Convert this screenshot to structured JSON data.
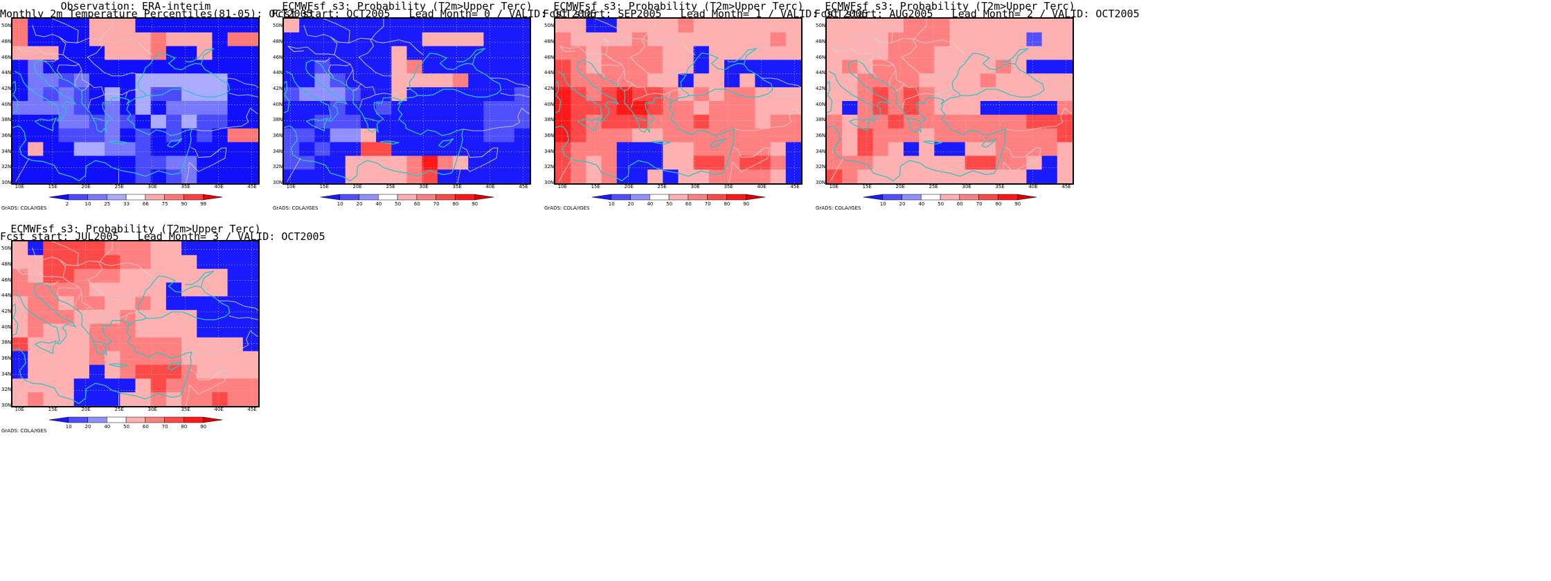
{
  "page": {
    "footer": "GrADS: COLA/IGES"
  },
  "map_extent": {
    "lon": [
      9,
      46
    ],
    "lat": [
      30,
      51
    ]
  },
  "palette": {
    "obs": [
      {
        "color": "#1010ff",
        "lo": 0,
        "hi": 2
      },
      {
        "color": "#4a4aff",
        "lo": 2,
        "hi": 10
      },
      {
        "color": "#7878ff",
        "lo": 10,
        "hi": 25
      },
      {
        "color": "#aaaaff",
        "lo": 25,
        "hi": 33
      },
      {
        "color": "#ffffff",
        "lo": 33,
        "hi": 66
      },
      {
        "color": "#ffaaaa",
        "lo": 66,
        "hi": 75
      },
      {
        "color": "#ff7878",
        "lo": 75,
        "hi": 90
      },
      {
        "color": "#ff4040",
        "lo": 90,
        "hi": 98
      },
      {
        "color": "#ee0000",
        "lo": 98,
        "hi": 100
      }
    ],
    "prob": [
      {
        "color": "#1a1aff",
        "lo": 0,
        "hi": 10
      },
      {
        "color": "#5050ff",
        "lo": 10,
        "hi": 20
      },
      {
        "color": "#9090ff",
        "lo": 20,
        "hi": 40
      },
      {
        "color": "#ffffff",
        "lo": 40,
        "hi": 50
      },
      {
        "color": "#ffb0b0",
        "lo": 50,
        "hi": 60
      },
      {
        "color": "#ff8080",
        "lo": 60,
        "hi": 70
      },
      {
        "color": "#ff4848",
        "lo": 70,
        "hi": 80
      },
      {
        "color": "#ff1818",
        "lo": 80,
        "hi": 90
      },
      {
        "color": "#dd0000",
        "lo": 90,
        "hi": 100
      }
    ]
  },
  "panels": [
    {
      "title1": "Observation: ERA-interim",
      "title2": "Monthly 2m Temperature Percentiles(81-05): OCT2005",
      "palette": "obs",
      "colorbar_labels": [
        "2",
        "10",
        "25",
        "33",
        "66",
        "75",
        "90",
        "98"
      ],
      "cells": [
        [
          6,
          0,
          0,
          0,
          0,
          5,
          5,
          5,
          0,
          0,
          0,
          0,
          0,
          0,
          0,
          0
        ],
        [
          6,
          0,
          0,
          0,
          0,
          5,
          5,
          5,
          5,
          6,
          5,
          5,
          5,
          0,
          6,
          6
        ],
        [
          5,
          5,
          5,
          0,
          0,
          0,
          5,
          5,
          5,
          6,
          0,
          0,
          5,
          0,
          0,
          0
        ],
        [
          0,
          2,
          0,
          0,
          0,
          0,
          0,
          0,
          0,
          0,
          0,
          0,
          0,
          0,
          0,
          0
        ],
        [
          0,
          2,
          2,
          1,
          2,
          0,
          0,
          0,
          3,
          3,
          3,
          3,
          3,
          3,
          0,
          0
        ],
        [
          0,
          2,
          1,
          2,
          1,
          0,
          3,
          0,
          3,
          1,
          1,
          3,
          3,
          3,
          0,
          0
        ],
        [
          2,
          2,
          2,
          2,
          1,
          0,
          2,
          0,
          3,
          0,
          2,
          2,
          2,
          2,
          0,
          0
        ],
        [
          0,
          0,
          0,
          2,
          2,
          1,
          2,
          1,
          0,
          3,
          1,
          3,
          1,
          1,
          0,
          0
        ],
        [
          0,
          0,
          0,
          1,
          1,
          1,
          2,
          0,
          1,
          0,
          1,
          0,
          1,
          0,
          6,
          6
        ],
        [
          0,
          5,
          0,
          0,
          3,
          3,
          2,
          2,
          1,
          0,
          0,
          0,
          0,
          0,
          0,
          0
        ],
        [
          0,
          0,
          0,
          0,
          0,
          0,
          0,
          0,
          1,
          1,
          2,
          2,
          0,
          0,
          0,
          0
        ],
        [
          0,
          0,
          0,
          0,
          0,
          0,
          0,
          0,
          1,
          0,
          1,
          2,
          0,
          0,
          0,
          0
        ]
      ]
    },
    {
      "title1": "ECMWFsf s3: Probability (T2m>Upper Terc)",
      "title2": "Fcst start: OCT2005   Lead Month= 0 / VALID: OCT2005",
      "palette": "prob",
      "colorbar_labels": [
        "10",
        "20",
        "40",
        "50",
        "60",
        "70",
        "80",
        "90"
      ],
      "cells": [
        [
          4,
          0,
          0,
          0,
          0,
          0,
          0,
          0,
          0,
          0,
          0,
          0,
          0,
          0,
          0,
          0
        ],
        [
          0,
          0,
          0,
          0,
          0,
          0,
          0,
          0,
          0,
          4,
          4,
          4,
          4,
          0,
          0,
          0
        ],
        [
          0,
          0,
          0,
          0,
          0,
          0,
          0,
          4,
          0,
          0,
          0,
          0,
          0,
          0,
          0,
          0
        ],
        [
          0,
          0,
          1,
          0,
          0,
          0,
          0,
          4,
          5,
          0,
          0,
          0,
          0,
          0,
          0,
          0
        ],
        [
          0,
          0,
          2,
          1,
          0,
          0,
          0,
          4,
          4,
          4,
          4,
          5,
          0,
          0,
          0,
          0
        ],
        [
          1,
          2,
          2,
          2,
          1,
          0,
          0,
          4,
          0,
          0,
          0,
          0,
          0,
          0,
          0,
          1
        ],
        [
          0,
          0,
          0,
          1,
          0,
          0,
          1,
          0,
          0,
          0,
          0,
          0,
          0,
          1,
          1,
          1
        ],
        [
          0,
          0,
          1,
          1,
          1,
          0,
          0,
          0,
          0,
          0,
          0,
          0,
          0,
          1,
          1,
          1
        ],
        [
          1,
          1,
          0,
          2,
          2,
          4,
          0,
          0,
          0,
          0,
          0,
          0,
          0,
          1,
          1,
          0
        ],
        [
          1,
          0,
          1,
          0,
          0,
          6,
          6,
          0,
          0,
          0,
          0,
          0,
          0,
          0,
          0,
          0
        ],
        [
          1,
          1,
          0,
          0,
          4,
          4,
          4,
          4,
          5,
          7,
          5,
          4,
          0,
          0,
          0,
          0
        ],
        [
          0,
          0,
          0,
          0,
          4,
          4,
          4,
          4,
          5,
          6,
          0,
          0,
          0,
          0,
          0,
          0
        ]
      ]
    },
    {
      "title1": "ECMWFsf s3: Probability (T2m>Upper Terc)",
      "title2": "Fcst start: SEP2005   Lead Month= 1 / VALID: OCT2005",
      "palette": "prob",
      "colorbar_labels": [
        "10",
        "20",
        "40",
        "50",
        "60",
        "70",
        "80",
        "90"
      ],
      "cells": [
        [
          4,
          4,
          0,
          0,
          4,
          4,
          4,
          4,
          5,
          4,
          4,
          4,
          4,
          4,
          4,
          4
        ],
        [
          5,
          4,
          4,
          4,
          4,
          5,
          4,
          4,
          4,
          4,
          4,
          4,
          4,
          4,
          5,
          4
        ],
        [
          5,
          5,
          4,
          5,
          5,
          5,
          5,
          4,
          4,
          0,
          4,
          4,
          4,
          4,
          4,
          4
        ],
        [
          6,
          5,
          4,
          5,
          5,
          5,
          5,
          4,
          4,
          0,
          4,
          0,
          0,
          0,
          0,
          0
        ],
        [
          6,
          5,
          5,
          5,
          5,
          5,
          4,
          4,
          0,
          4,
          4,
          0,
          4,
          0,
          0,
          0
        ],
        [
          7,
          6,
          5,
          6,
          7,
          6,
          6,
          5,
          4,
          5,
          4,
          5,
          5,
          4,
          4,
          4
        ],
        [
          7,
          6,
          6,
          6,
          7,
          7,
          6,
          5,
          5,
          4,
          5,
          5,
          5,
          4,
          4,
          4
        ],
        [
          7,
          6,
          5,
          6,
          6,
          6,
          5,
          5,
          5,
          6,
          5,
          5,
          5,
          4,
          5,
          5
        ],
        [
          7,
          6,
          5,
          5,
          5,
          4,
          4,
          5,
          5,
          5,
          5,
          5,
          5,
          5,
          5,
          5
        ],
        [
          6,
          5,
          5,
          5,
          0,
          0,
          0,
          4,
          4,
          5,
          5,
          5,
          5,
          5,
          4,
          0
        ],
        [
          6,
          5,
          4,
          5,
          0,
          0,
          0,
          4,
          4,
          6,
          6,
          5,
          6,
          6,
          5,
          0
        ],
        [
          6,
          5,
          4,
          5,
          0,
          0,
          4,
          0,
          4,
          4,
          5,
          5,
          5,
          5,
          4,
          0
        ]
      ]
    },
    {
      "title1": "ECMWFsf s3: Probability (T2m>Upper Terc)",
      "title2": "Fcst start: AUG2005   Lead Month= 2 / VALID: OCT2005",
      "palette": "prob",
      "colorbar_labels": [
        "10",
        "20",
        "40",
        "50",
        "60",
        "70",
        "80",
        "90"
      ],
      "cells": [
        [
          4,
          4,
          4,
          4,
          4,
          5,
          5,
          5,
          4,
          4,
          4,
          4,
          4,
          4,
          4,
          4
        ],
        [
          4,
          4,
          4,
          4,
          5,
          5,
          5,
          5,
          4,
          4,
          4,
          4,
          4,
          1,
          4,
          4
        ],
        [
          4,
          4,
          4,
          4,
          5,
          5,
          5,
          4,
          4,
          4,
          4,
          4,
          4,
          4,
          4,
          4
        ],
        [
          4,
          5,
          4,
          5,
          5,
          5,
          5,
          4,
          4,
          4,
          4,
          5,
          4,
          0,
          0,
          0
        ],
        [
          4,
          4,
          5,
          5,
          5,
          5,
          4,
          4,
          4,
          4,
          5,
          4,
          4,
          4,
          4,
          4
        ],
        [
          4,
          4,
          5,
          6,
          5,
          6,
          5,
          4,
          4,
          4,
          4,
          4,
          4,
          4,
          4,
          4
        ],
        [
          4,
          0,
          5,
          6,
          5,
          6,
          5,
          4,
          4,
          4,
          0,
          0,
          0,
          0,
          0,
          5
        ],
        [
          5,
          4,
          5,
          5,
          6,
          5,
          5,
          5,
          5,
          5,
          5,
          5,
          5,
          6,
          6,
          6
        ],
        [
          5,
          4,
          6,
          5,
          5,
          5,
          4,
          5,
          5,
          5,
          5,
          5,
          5,
          5,
          5,
          6
        ],
        [
          5,
          4,
          6,
          5,
          4,
          0,
          4,
          0,
          0,
          4,
          4,
          5,
          5,
          5,
          5,
          4
        ],
        [
          5,
          5,
          5,
          4,
          4,
          4,
          4,
          4,
          4,
          6,
          6,
          5,
          5,
          4,
          0,
          4
        ],
        [
          6,
          5,
          4,
          4,
          4,
          4,
          4,
          4,
          4,
          4,
          4,
          4,
          4,
          0,
          0,
          4
        ]
      ]
    },
    {
      "title1": "ECMWFsf s3: Probability (T2m>Upper Terc)",
      "title2": "Fcst start: JUL2005   Lead Month= 3 / VALID: OCT2005",
      "palette": "prob",
      "colorbar_labels": [
        "10",
        "20",
        "40",
        "50",
        "60",
        "70",
        "80",
        "90"
      ],
      "cells": [
        [
          4,
          0,
          6,
          6,
          6,
          6,
          5,
          5,
          5,
          4,
          4,
          0,
          0,
          0,
          0,
          0
        ],
        [
          4,
          4,
          6,
          6,
          6,
          6,
          6,
          5,
          5,
          4,
          4,
          4,
          0,
          0,
          0,
          0
        ],
        [
          5,
          4,
          6,
          6,
          5,
          5,
          5,
          4,
          4,
          4,
          4,
          4,
          4,
          4,
          0,
          0
        ],
        [
          5,
          5,
          5,
          5,
          5,
          4,
          4,
          4,
          4,
          4,
          0,
          4,
          4,
          4,
          0,
          0
        ],
        [
          4,
          5,
          5,
          4,
          5,
          5,
          4,
          4,
          5,
          4,
          0,
          0,
          0,
          0,
          0,
          0
        ],
        [
          4,
          5,
          5,
          5,
          4,
          4,
          4,
          5,
          4,
          4,
          4,
          4,
          0,
          0,
          0,
          0
        ],
        [
          4,
          5,
          4,
          4,
          4,
          5,
          5,
          5,
          4,
          4,
          4,
          4,
          0,
          0,
          0,
          0
        ],
        [
          6,
          4,
          4,
          4,
          4,
          5,
          5,
          5,
          5,
          5,
          5,
          4,
          4,
          4,
          4,
          0
        ],
        [
          0,
          4,
          4,
          4,
          4,
          5,
          4,
          5,
          5,
          5,
          5,
          4,
          4,
          4,
          4,
          4
        ],
        [
          0,
          4,
          4,
          4,
          4,
          0,
          4,
          5,
          6,
          6,
          6,
          5,
          4,
          4,
          4,
          4
        ],
        [
          4,
          4,
          4,
          4,
          0,
          0,
          0,
          0,
          4,
          6,
          5,
          5,
          5,
          5,
          5,
          5
        ],
        [
          4,
          5,
          4,
          4,
          0,
          0,
          0,
          4,
          4,
          5,
          4,
          5,
          5,
          6,
          5,
          5
        ]
      ]
    }
  ],
  "axes": {
    "lon_ticks": [
      "10E",
      "15E",
      "20E",
      "25E",
      "30E",
      "35E",
      "40E",
      "45E"
    ],
    "lat_ticks": [
      "30N",
      "32N",
      "34N",
      "36N",
      "38N",
      "40N",
      "42N",
      "44N",
      "46N",
      "48N",
      "50N"
    ]
  }
}
